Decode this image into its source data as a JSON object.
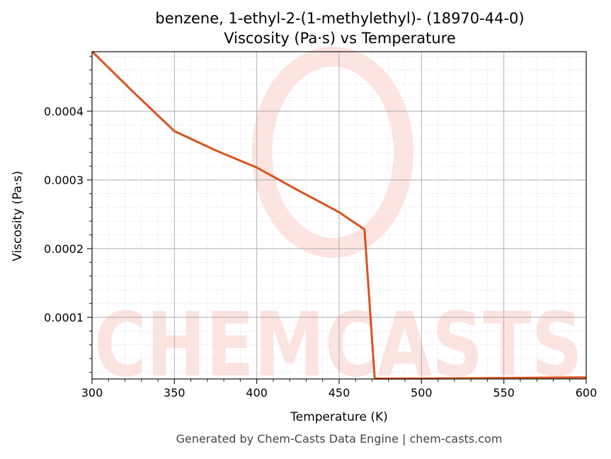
{
  "chart_data": {
    "type": "line",
    "title": "benzene, 1-ethyl-2-(1-methylethyl)- (18970-44-0)",
    "subtitle": "Viscosity (Pa·s) vs Temperature",
    "xlabel": "Temperature (K)",
    "ylabel": "Viscosity (Pa·s)",
    "xlim": [
      300,
      600
    ],
    "ylim": [
      1.03e-05,
      0.0004866
    ],
    "xticks": [
      300,
      350,
      400,
      450,
      500,
      550,
      600
    ],
    "xtick_labels": [
      "300",
      "350",
      "400",
      "450",
      "500",
      "550",
      "600"
    ],
    "yticks": [
      0.0001,
      0.0002,
      0.0003,
      0.0004
    ],
    "ytick_labels": [
      "0.0001",
      "0.0002",
      "0.0003",
      "0.0004"
    ],
    "grid": true,
    "series": [
      {
        "name": "Viscosity",
        "color": "#d9531e",
        "x": [
          300,
          325,
          350,
          375,
          400,
          425,
          450,
          465.4,
          471.6,
          500,
          550,
          600
        ],
        "y": [
          0.000487,
          0.000428,
          0.000371,
          0.000343,
          0.000318,
          0.000285,
          0.000253,
          0.000228,
          1.08e-05,
          1.1e-05,
          1.17e-05,
          1.26e-05
        ]
      }
    ],
    "watermark": "CHEMCASTS"
  },
  "footer": "Generated by Chem-Casts Data Engine | chem-casts.com"
}
